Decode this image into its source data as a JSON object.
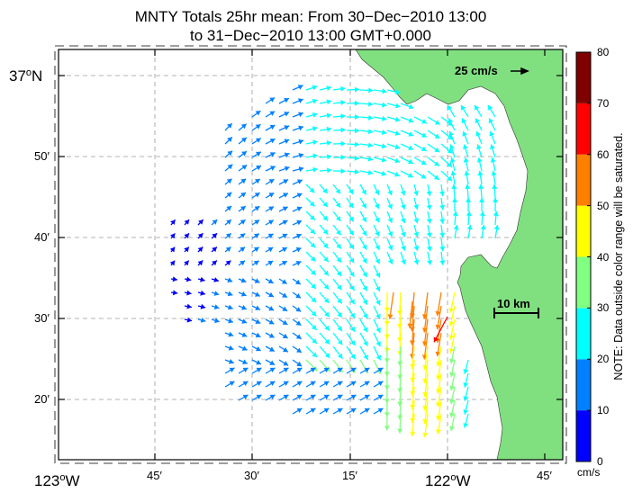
{
  "title": {
    "line1": "MNTY Totals 25hr mean: From 30−Dec−2010 13:00",
    "line2": "to 31−Dec−2010 13:00 GMT+0.000"
  },
  "axes": {
    "lat_labels": [
      {
        "label": "37",
        "hemi": "N",
        "lat": 37.0,
        "major": true
      },
      {
        "label": "50′",
        "lat": 36.8333
      },
      {
        "label": "40′",
        "lat": 36.6667
      },
      {
        "label": "30′",
        "lat": 36.5
      },
      {
        "label": "20′",
        "lat": 36.3333
      }
    ],
    "lon_labels": [
      {
        "label": "123",
        "hemi": "W",
        "lon": -123.0,
        "major": true
      },
      {
        "label": "45′",
        "lon": -122.75
      },
      {
        "label": "30′",
        "lon": -122.5
      },
      {
        "label": "15′",
        "lon": -122.25
      },
      {
        "label": "122",
        "hemi": "W",
        "lon": -122.0,
        "major": true
      },
      {
        "label": "45′",
        "lon": -121.75
      }
    ],
    "lon_range": [
      -123.0,
      -121.7
    ],
    "lat_range": [
      36.215,
      37.05
    ],
    "degree_symbol": "o"
  },
  "scale": {
    "speed_label": "25 cm/s",
    "distance_label": "10 km"
  },
  "colorbar": {
    "ticks": [
      "0",
      "10",
      "20",
      "30",
      "40",
      "50",
      "60",
      "70",
      "80"
    ],
    "unit": "cm/s",
    "colors": [
      "#0000ff",
      "#0080ff",
      "#00ffff",
      "#80ff80",
      "#ffff00",
      "#ff8000",
      "#ff0000",
      "#800000"
    ],
    "note": "NOTE: Data outside color range will be saturated."
  },
  "land_color": "#80e080"
}
